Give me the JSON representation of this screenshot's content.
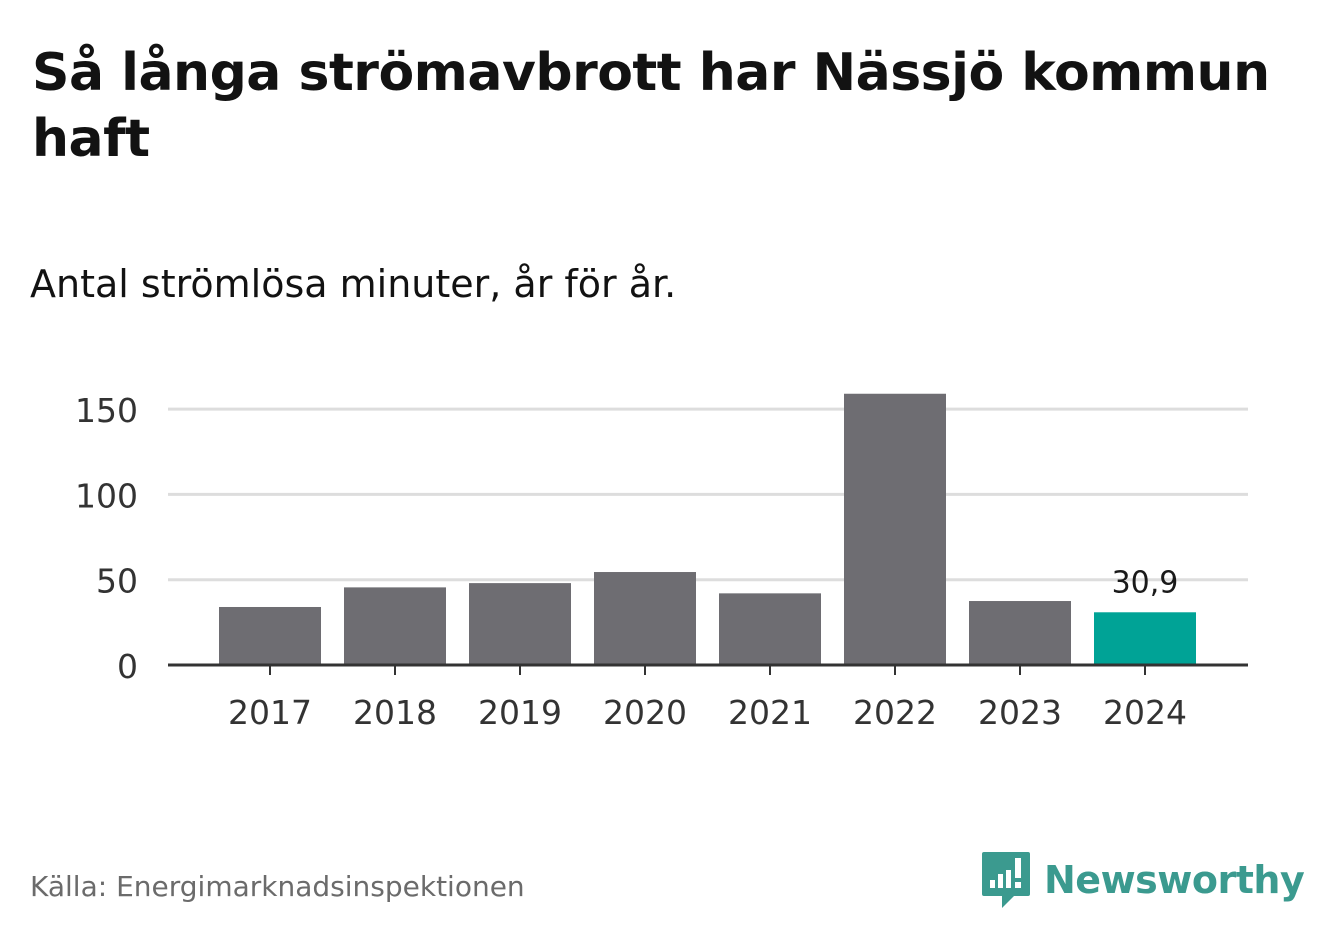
{
  "title": "Så långa strömavbrott har Nässjö kommun haft",
  "subtitle": "Antal strömlösa minuter, år för år.",
  "source": "Källa: Energimarknadsinspektionen",
  "brand": {
    "name": "Newsworthy",
    "icon": "newsworthy-logo-icon",
    "color": "#3b9a8f"
  },
  "colors": {
    "bar": "#6e6d72",
    "highlight": "#00a396",
    "grid": "#dddddd",
    "axis": "#333333"
  },
  "chart_data": {
    "type": "bar",
    "title": "Så långa strömavbrott har Nässjö kommun haft",
    "subtitle": "Antal strömlösa minuter, år för år.",
    "xlabel": "",
    "ylabel": "",
    "categories": [
      "2017",
      "2018",
      "2019",
      "2020",
      "2021",
      "2022",
      "2023",
      "2024"
    ],
    "values": [
      34,
      45.5,
      48,
      54.5,
      42,
      159,
      37.5,
      30.9
    ],
    "highlight_index": 7,
    "value_labels": [
      {
        "index": 7,
        "text": "30,9"
      }
    ],
    "ylim": [
      0,
      160
    ],
    "yticks": [
      0,
      50,
      100,
      150
    ],
    "ytick_labels": [
      "0",
      "50",
      "100",
      "150"
    ],
    "grid": true
  }
}
